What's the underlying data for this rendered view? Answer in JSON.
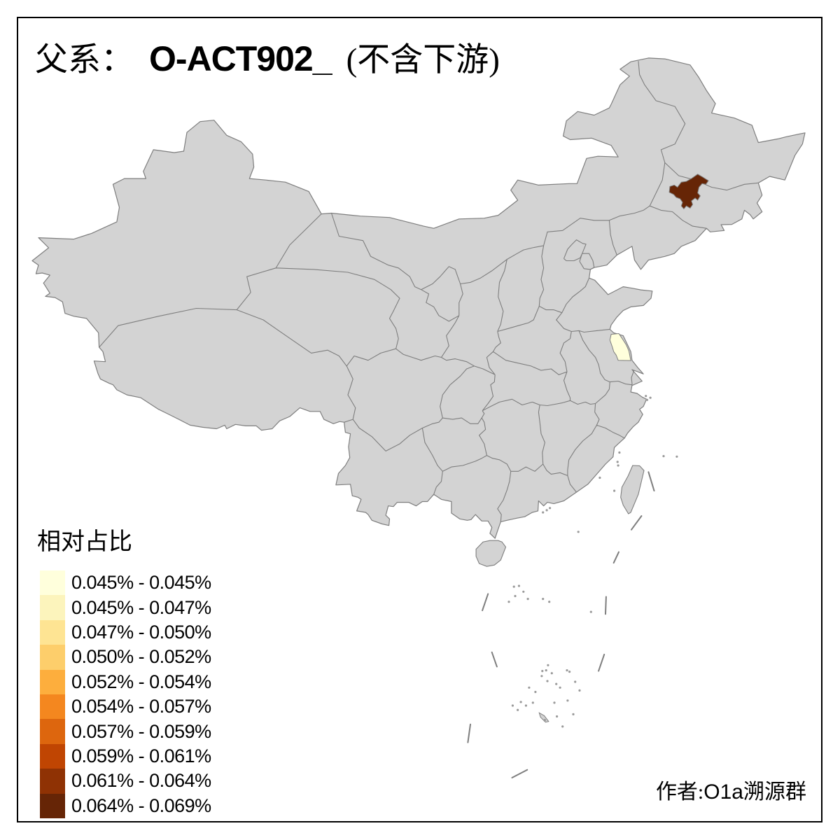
{
  "title": {
    "prefix": "父系：",
    "code": "O-ACT902_",
    "suffix": "(不含下游)"
  },
  "legend": {
    "title": "相对占比",
    "items": [
      {
        "color": "#FFFFDC",
        "label": "0.045% - 0.045%"
      },
      {
        "color": "#FCF4BC",
        "label": "0.045% - 0.047%"
      },
      {
        "color": "#FEE493",
        "label": "0.047% - 0.050%"
      },
      {
        "color": "#FDCE6B",
        "label": "0.050% - 0.052%"
      },
      {
        "color": "#FDAE3D",
        "label": "0.052% - 0.054%"
      },
      {
        "color": "#F4871F",
        "label": "0.054% - 0.057%"
      },
      {
        "color": "#DD660E",
        "label": "0.057% - 0.059%"
      },
      {
        "color": "#C04502",
        "label": "0.059% - 0.061%"
      },
      {
        "color": "#8F3204",
        "label": "0.061% - 0.064%"
      },
      {
        "color": "#662506",
        "label": "0.064% - 0.069%"
      }
    ]
  },
  "attribution": {
    "prefix": "作者:",
    "latin": "O1a",
    "suffix": "溯源群"
  },
  "map": {
    "land_fill": "#D3D3D3",
    "border_color": "#7E7E7E",
    "background": "#FFFFFF",
    "frame_color": "#000000",
    "highlighted_regions": [
      {
        "region": "changchun-area",
        "color": "#662506",
        "legend_range": "0.064% - 0.069%"
      },
      {
        "region": "yancheng-area",
        "color": "#FFFFDC",
        "legend_range": "0.045% - 0.045%"
      }
    ]
  }
}
